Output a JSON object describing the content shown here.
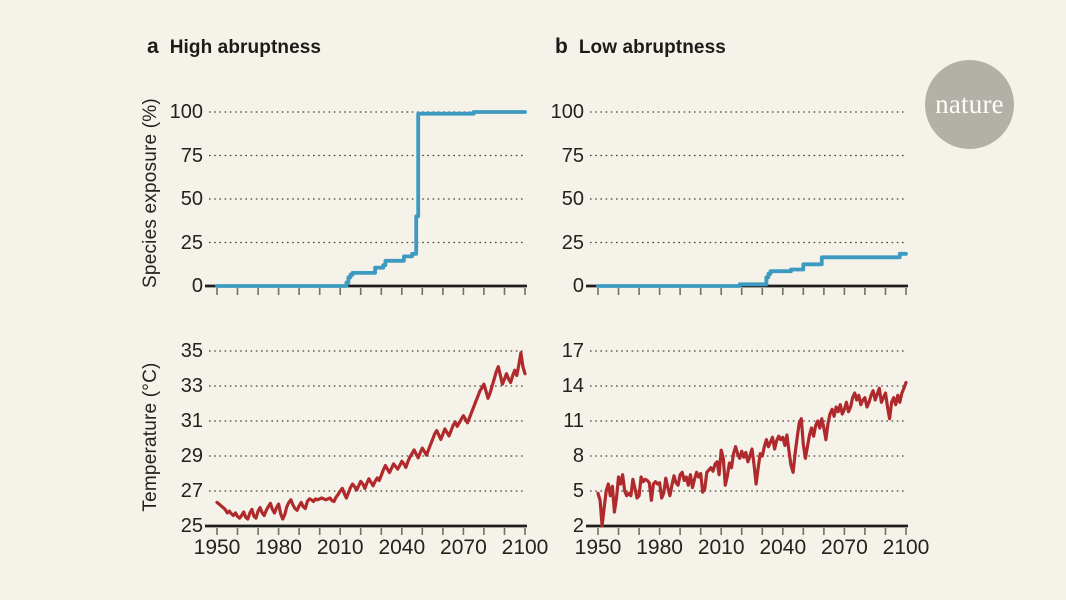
{
  "figure": {
    "background": "#f4f2e9",
    "logo": {
      "text": "nature",
      "circle_color": "#b3b0a8",
      "text_color": "#fdfdf8"
    }
  },
  "panels": [
    {
      "letter": "a",
      "title": "High abruptness"
    },
    {
      "letter": "b",
      "title": "Low abruptness"
    }
  ],
  "colors": {
    "exposure_line": "#3d9bc1",
    "temperature_line": "#b02a2d",
    "axis": "#1f1e1c",
    "grid_dots": "#45423d",
    "tick_marks": "#72706a",
    "text": "#24221e"
  },
  "chart_data": [
    {
      "id": "a-top",
      "type": "line",
      "line_style": "step",
      "panel": "a",
      "title": "High abruptness",
      "ylabel": "Species exposure (%)",
      "xlabel": "",
      "x_range": [
        1950,
        2100
      ],
      "y_range": [
        0,
        100
      ],
      "y_ticks": [
        0,
        25,
        50,
        75,
        100
      ],
      "x_tick_interval": 10,
      "x_tick_labels": [],
      "grid": "dotted-horizontal",
      "legend": "none",
      "series": [
        {
          "name": "species_exposure_pct",
          "color": "#3d9bc1",
          "points": [
            [
              1950,
              0
            ],
            [
              2012,
              0
            ],
            [
              2013,
              2
            ],
            [
              2014,
              5
            ],
            [
              2015,
              6.5
            ],
            [
              2016,
              7.5
            ],
            [
              2026,
              7.5
            ],
            [
              2027,
              10.5
            ],
            [
              2030,
              10.5
            ],
            [
              2031,
              12
            ],
            [
              2032,
              14.5
            ],
            [
              2040,
              14.5
            ],
            [
              2041,
              17
            ],
            [
              2044,
              17
            ],
            [
              2045,
              18.5
            ],
            [
              2046,
              18.5
            ],
            [
              2047,
              40
            ],
            [
              2048,
              99
            ],
            [
              2074,
              99
            ],
            [
              2075,
              100
            ],
            [
              2100,
              100
            ]
          ]
        }
      ]
    },
    {
      "id": "b-top",
      "type": "line",
      "line_style": "step",
      "panel": "b",
      "title": "Low abruptness",
      "ylabel": "",
      "xlabel": "",
      "x_range": [
        1950,
        2100
      ],
      "y_range": [
        0,
        100
      ],
      "y_ticks": [
        0,
        25,
        50,
        75,
        100
      ],
      "x_tick_interval": 10,
      "x_tick_labels": [],
      "grid": "dotted-horizontal",
      "legend": "none",
      "series": [
        {
          "name": "species_exposure_pct",
          "color": "#3d9bc1",
          "points": [
            [
              1950,
              0
            ],
            [
              2018,
              0
            ],
            [
              2019,
              1
            ],
            [
              2031,
              1
            ],
            [
              2032,
              5
            ],
            [
              2033,
              7
            ],
            [
              2034,
              8.5
            ],
            [
              2043,
              8.5
            ],
            [
              2044,
              9.5
            ],
            [
              2049,
              9.5
            ],
            [
              2050,
              12.5
            ],
            [
              2058,
              12.5
            ],
            [
              2059,
              16.5
            ],
            [
              2096,
              16.5
            ],
            [
              2097,
              18.5
            ],
            [
              2100,
              18.5
            ]
          ]
        }
      ]
    },
    {
      "id": "a-bottom",
      "type": "line",
      "panel": "a",
      "ylabel": "Temperature (°C)",
      "xlabel": "",
      "x_range": [
        1950,
        2100
      ],
      "y_range": [
        25,
        35
      ],
      "y_ticks": [
        25,
        27,
        29,
        31,
        33,
        35
      ],
      "x_tick_interval": 10,
      "x_tick_labels": [
        1950,
        1980,
        2010,
        2040,
        2070,
        2100
      ],
      "grid": "dotted-horizontal",
      "legend": "none",
      "series": [
        {
          "name": "temperature_c",
          "color": "#b02a2d",
          "x_start": 1950,
          "x_step": 1,
          "values": [
            26.35,
            26.25,
            26.15,
            26.05,
            25.95,
            25.75,
            25.85,
            25.7,
            25.6,
            25.75,
            25.55,
            25.45,
            25.6,
            25.8,
            25.5,
            25.4,
            25.75,
            25.95,
            25.55,
            25.45,
            25.85,
            26.05,
            25.75,
            25.6,
            25.9,
            26.1,
            26.3,
            25.95,
            25.75,
            26.05,
            26.25,
            25.7,
            25.4,
            25.65,
            26.1,
            26.35,
            26.5,
            26.2,
            26.0,
            25.9,
            26.15,
            26.35,
            26.1,
            26.0,
            26.4,
            26.55,
            26.5,
            26.4,
            26.55,
            26.5,
            26.55,
            26.6,
            26.55,
            26.5,
            26.55,
            26.6,
            26.45,
            26.4,
            26.65,
            26.8,
            27.0,
            27.15,
            26.85,
            26.6,
            26.9,
            27.2,
            27.4,
            27.25,
            27.05,
            27.3,
            27.55,
            27.4,
            27.15,
            27.45,
            27.7,
            27.5,
            27.3,
            27.55,
            27.75,
            27.6,
            27.9,
            28.2,
            28.45,
            28.25,
            28.05,
            28.3,
            28.55,
            28.4,
            28.25,
            28.45,
            28.7,
            28.55,
            28.35,
            28.7,
            28.95,
            29.15,
            29.35,
            29.1,
            28.9,
            29.2,
            29.45,
            29.25,
            29.05,
            29.35,
            29.65,
            29.95,
            30.25,
            30.45,
            30.2,
            29.95,
            30.25,
            30.55,
            30.35,
            30.15,
            30.45,
            30.75,
            30.95,
            30.7,
            30.9,
            31.1,
            31.3,
            31.1,
            30.9,
            31.2,
            31.5,
            31.8,
            32.1,
            32.4,
            32.7,
            32.9,
            33.1,
            32.7,
            32.3,
            32.6,
            33.0,
            33.4,
            33.8,
            34.1,
            33.6,
            33.1,
            33.4,
            33.7,
            33.4,
            33.2,
            33.6,
            33.9,
            33.6,
            34.2,
            34.9,
            34.1,
            33.7
          ]
        }
      ]
    },
    {
      "id": "b-bottom",
      "type": "line",
      "panel": "b",
      "ylabel": "",
      "xlabel": "",
      "x_range": [
        1950,
        2100
      ],
      "y_range": [
        2,
        17
      ],
      "y_ticks": [
        2,
        5,
        8,
        11,
        14,
        17
      ],
      "x_tick_interval": 10,
      "x_tick_labels": [
        1950,
        1980,
        2010,
        2040,
        2070,
        2100
      ],
      "grid": "dotted-horizontal",
      "legend": "none",
      "series": [
        {
          "name": "temperature_c",
          "color": "#b02a2d",
          "x_start": 1950,
          "x_step": 1,
          "values": [
            4.8,
            4.2,
            2.0,
            3.6,
            5.0,
            5.6,
            4.6,
            5.4,
            3.2,
            4.4,
            6.2,
            5.6,
            6.4,
            5.0,
            4.6,
            4.8,
            4.6,
            6.0,
            5.2,
            4.4,
            4.6,
            6.2,
            5.8,
            6.0,
            5.9,
            5.7,
            4.2,
            5.6,
            5.8,
            5.6,
            5.7,
            4.4,
            4.8,
            6.1,
            5.3,
            4.6,
            5.5,
            6.3,
            5.7,
            5.5,
            6.4,
            6.6,
            5.9,
            6.2,
            5.5,
            6.4,
            5.3,
            6.0,
            6.6,
            6.2,
            6.5,
            4.9,
            5.2,
            6.6,
            6.8,
            7.0,
            6.7,
            7.3,
            7.5,
            6.4,
            8.5,
            7.8,
            5.5,
            6.3,
            7.4,
            7.0,
            8.2,
            8.8,
            8.2,
            7.8,
            8.4,
            7.9,
            8.3,
            7.5,
            8.0,
            8.6,
            7.2,
            5.6,
            7.0,
            8.2,
            8.0,
            8.8,
            9.4,
            8.8,
            9.2,
            9.6,
            8.6,
            9.3,
            9.7,
            9.4,
            9.6,
            8.9,
            9.8,
            8.4,
            7.2,
            6.6,
            8.2,
            9.6,
            10.8,
            11.2,
            9.0,
            7.8,
            8.8,
            9.8,
            10.4,
            9.7,
            10.6,
            11.0,
            10.4,
            11.2,
            10.4,
            9.4,
            10.8,
            11.6,
            12.0,
            11.4,
            12.2,
            11.8,
            12.4,
            11.6,
            12.0,
            12.6,
            11.8,
            12.2,
            13.0,
            13.4,
            12.8,
            13.2,
            12.4,
            12.8,
            13.0,
            12.2,
            12.6,
            13.2,
            13.6,
            12.8,
            13.3,
            13.8,
            12.6,
            13.0,
            13.4,
            12.2,
            11.2,
            12.6,
            13.0,
            12.4,
            13.2,
            12.6,
            13.4,
            13.8,
            14.3
          ]
        }
      ]
    }
  ]
}
